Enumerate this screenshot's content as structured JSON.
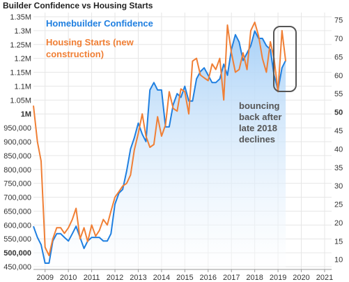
{
  "chart_data": {
    "type": "line",
    "title": "Builder Confidence vs Housing Starts",
    "colors": {
      "homebuilder": "#1f7fe0",
      "starts": "#f07f35",
      "fill_top": "#a9d1f7",
      "fill_bottom": "#ffffff",
      "grid": "#e6e6e6",
      "annotation_box": "#555555"
    },
    "legend": [
      {
        "name": "Homebuilder Confidence",
        "color": "#1f7fe0"
      },
      {
        "name": "Housing Starts (new construction)",
        "lines": [
          "Housing Starts (new",
          "construction)"
        ],
        "color": "#f07f35"
      }
    ],
    "annotation": {
      "lines": [
        "bouncing",
        "back after",
        "late 2018",
        "declines"
      ]
    },
    "x_axis": {
      "ticks": [
        "2009",
        "2010",
        "2011",
        "2012",
        "2013",
        "2014",
        "2015",
        "2016",
        "2017",
        "2018",
        "2019",
        "2020",
        "2021"
      ],
      "range": [
        2008.5,
        2021.3
      ]
    },
    "y_left": {
      "range": [
        440000,
        1365000
      ],
      "ticks": [
        {
          "v": 1350000,
          "label": "1.35M"
        },
        {
          "v": 1300000,
          "label": "1.3M"
        },
        {
          "v": 1250000,
          "label": "1.25M"
        },
        {
          "v": 1200000,
          "label": "1.2M"
        },
        {
          "v": 1150000,
          "label": "1.15M"
        },
        {
          "v": 1100000,
          "label": "1.1M"
        },
        {
          "v": 1050000,
          "label": "1.05M"
        },
        {
          "v": 1000000,
          "label": "1M",
          "bold": true
        },
        {
          "v": 950000,
          "label": "950,000"
        },
        {
          "v": 900000,
          "label": "900,000"
        },
        {
          "v": 850000,
          "label": "850,000"
        },
        {
          "v": 800000,
          "label": "800,000"
        },
        {
          "v": 750000,
          "label": "750,000"
        },
        {
          "v": 700000,
          "label": "700,000"
        },
        {
          "v": 650000,
          "label": "650,000"
        },
        {
          "v": 600000,
          "label": "600,000"
        },
        {
          "v": 550000,
          "label": "550,000"
        },
        {
          "v": 500000,
          "label": "500,000",
          "bold": true
        },
        {
          "v": 450000,
          "label": "450,000"
        }
      ]
    },
    "y_right": {
      "range": [
        7.3,
        77
      ],
      "ticks": [
        {
          "v": 75,
          "label": "75"
        },
        {
          "v": 70,
          "label": "70"
        },
        {
          "v": 65,
          "label": "65"
        },
        {
          "v": 60,
          "label": "60"
        },
        {
          "v": 55,
          "label": "55"
        },
        {
          "v": 50,
          "label": "50",
          "bold": true
        },
        {
          "v": 45,
          "label": "45"
        },
        {
          "v": 40,
          "label": "40"
        },
        {
          "v": 35,
          "label": "35"
        },
        {
          "v": 30,
          "label": "30"
        },
        {
          "v": 25,
          "label": "25"
        },
        {
          "v": 20,
          "label": "20"
        },
        {
          "v": 15,
          "label": "15"
        },
        {
          "v": 10,
          "label": "10"
        }
      ]
    },
    "series": [
      {
        "name": "Homebuilder Confidence",
        "axis": "right",
        "x": [
          2008.5,
          2008.67,
          2008.83,
          2009.0,
          2009.17,
          2009.33,
          2009.5,
          2009.67,
          2009.83,
          2010.0,
          2010.17,
          2010.33,
          2010.5,
          2010.67,
          2010.83,
          2011.0,
          2011.17,
          2011.33,
          2011.5,
          2011.67,
          2011.83,
          2012.0,
          2012.17,
          2012.33,
          2012.5,
          2012.67,
          2012.83,
          2013.0,
          2013.17,
          2013.33,
          2013.5,
          2013.67,
          2013.83,
          2014.0,
          2014.17,
          2014.33,
          2014.5,
          2014.67,
          2014.83,
          2015.0,
          2015.17,
          2015.33,
          2015.5,
          2015.67,
          2015.83,
          2016.0,
          2016.17,
          2016.33,
          2016.5,
          2016.67,
          2016.83,
          2017.0,
          2017.17,
          2017.33,
          2017.5,
          2017.67,
          2017.83,
          2018.0,
          2018.17,
          2018.33,
          2018.5,
          2018.67,
          2018.83,
          2019.0,
          2019.17,
          2019.33
        ],
        "values": [
          19,
          16,
          14,
          9,
          9,
          15,
          17,
          17,
          16,
          15,
          17,
          19,
          16,
          13,
          15,
          16,
          16,
          16,
          15,
          15,
          17,
          25,
          28,
          29,
          34,
          40,
          43,
          47,
          44,
          42,
          56,
          58,
          56,
          56,
          46,
          46,
          52,
          55,
          54,
          57,
          53,
          53,
          59,
          61,
          62,
          60,
          58,
          58,
          59,
          63,
          60,
          67,
          71,
          69,
          64,
          66,
          68,
          72,
          70,
          70,
          68,
          67,
          60,
          56,
          62,
          64
        ]
      },
      {
        "name": "Housing Starts (new construction)",
        "axis": "left",
        "x": [
          2008.5,
          2008.67,
          2008.83,
          2009.0,
          2009.17,
          2009.33,
          2009.5,
          2009.67,
          2009.83,
          2010.0,
          2010.17,
          2010.33,
          2010.5,
          2010.67,
          2010.83,
          2011.0,
          2011.17,
          2011.33,
          2011.5,
          2011.67,
          2011.83,
          2012.0,
          2012.17,
          2012.33,
          2012.5,
          2012.67,
          2012.83,
          2013.0,
          2013.17,
          2013.33,
          2013.5,
          2013.67,
          2013.83,
          2014.0,
          2014.17,
          2014.33,
          2014.5,
          2014.67,
          2014.83,
          2015.0,
          2015.17,
          2015.33,
          2015.5,
          2015.67,
          2015.83,
          2016.0,
          2016.17,
          2016.33,
          2016.5,
          2016.67,
          2016.83,
          2017.0,
          2017.17,
          2017.33,
          2017.5,
          2017.67,
          2017.83,
          2018.0,
          2018.17,
          2018.33,
          2018.5,
          2018.67,
          2018.83,
          2019.0,
          2019.17,
          2019.33
        ],
        "values": [
          1030000,
          900000,
          830000,
          520000,
          490000,
          550000,
          590000,
          590000,
          570000,
          590000,
          620000,
          660000,
          550000,
          590000,
          540000,
          600000,
          560000,
          580000,
          620000,
          600000,
          650000,
          700000,
          720000,
          740000,
          750000,
          780000,
          870000,
          930000,
          1000000,
          920000,
          880000,
          890000,
          990000,
          920000,
          960000,
          1080000,
          1020000,
          1010000,
          1090000,
          1080000,
          1000000,
          1190000,
          1200000,
          1140000,
          1130000,
          1120000,
          1180000,
          1160000,
          1200000,
          1050000,
          1320000,
          1220000,
          1150000,
          1160000,
          1220000,
          1160000,
          1300000,
          1330000,
          1280000,
          1200000,
          1150000,
          1260000,
          1200000,
          1080000,
          1300000,
          1190000
        ]
      }
    ]
  }
}
